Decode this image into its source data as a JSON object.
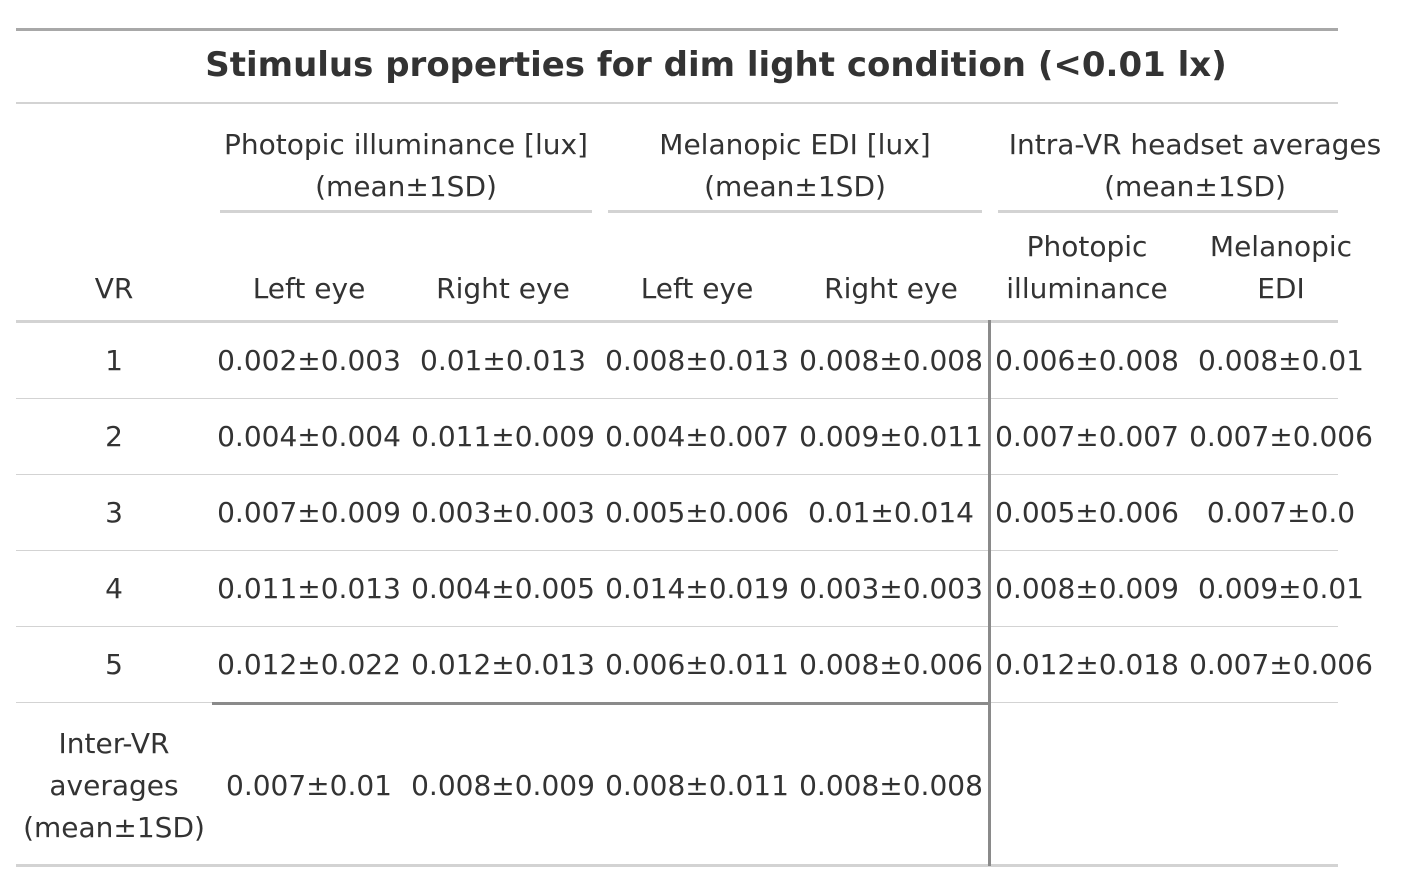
{
  "title": "Stimulus properties for dim light condition (<0.01 lx)",
  "spanners": {
    "photopic": {
      "line1": "Photopic illuminance [lux]",
      "line2": "(mean±1SD)"
    },
    "melanopic": {
      "line1": "Melanopic EDI [lux]",
      "line2": "(mean±1SD)"
    },
    "intra": {
      "line1": "Intra-VR headset averages",
      "line2": "(mean±1SD)"
    }
  },
  "columns": {
    "vr": "VR",
    "left_eye_1": "Left eye",
    "right_eye_1": "Right eye",
    "left_eye_2": "Left eye",
    "right_eye_2": "Right eye",
    "intra_photopic": {
      "line1": "Photopic",
      "line2": "illuminance"
    },
    "intra_melanopic": {
      "line1": "Melanopic",
      "line2": "EDI"
    }
  },
  "rows": [
    {
      "vr": "1",
      "c1": "0.002±0.003",
      "c2": "0.01±0.013",
      "c3": "0.008±0.013",
      "c4": "0.008±0.008",
      "c5": "0.006±0.008",
      "c6": "0.008±0.01"
    },
    {
      "vr": "2",
      "c1": "0.004±0.004",
      "c2": "0.011±0.009",
      "c3": "0.004±0.007",
      "c4": "0.009±0.011",
      "c5": "0.007±0.007",
      "c6": "0.007±0.006"
    },
    {
      "vr": "3",
      "c1": "0.007±0.009",
      "c2": "0.003±0.003",
      "c3": "0.005±0.006",
      "c4": "0.01±0.014",
      "c5": "0.005±0.006",
      "c6": "0.007±0.0"
    },
    {
      "vr": "4",
      "c1": "0.011±0.013",
      "c2": "0.004±0.005",
      "c3": "0.014±0.019",
      "c4": "0.003±0.003",
      "c5": "0.008±0.009",
      "c6": "0.009±0.01"
    },
    {
      "vr": "5",
      "c1": "0.012±0.022",
      "c2": "0.012±0.013",
      "c3": "0.006±0.011",
      "c4": "0.008±0.006",
      "c5": "0.012±0.018",
      "c6": "0.007±0.006"
    }
  ],
  "inter": {
    "label": {
      "line1": "Inter-VR",
      "line2": "averages",
      "line3": "(mean±1SD)"
    },
    "c1": "0.007±0.01",
    "c2": "0.008±0.009",
    "c3": "0.008±0.011",
    "c4": "0.008±0.008"
  }
}
